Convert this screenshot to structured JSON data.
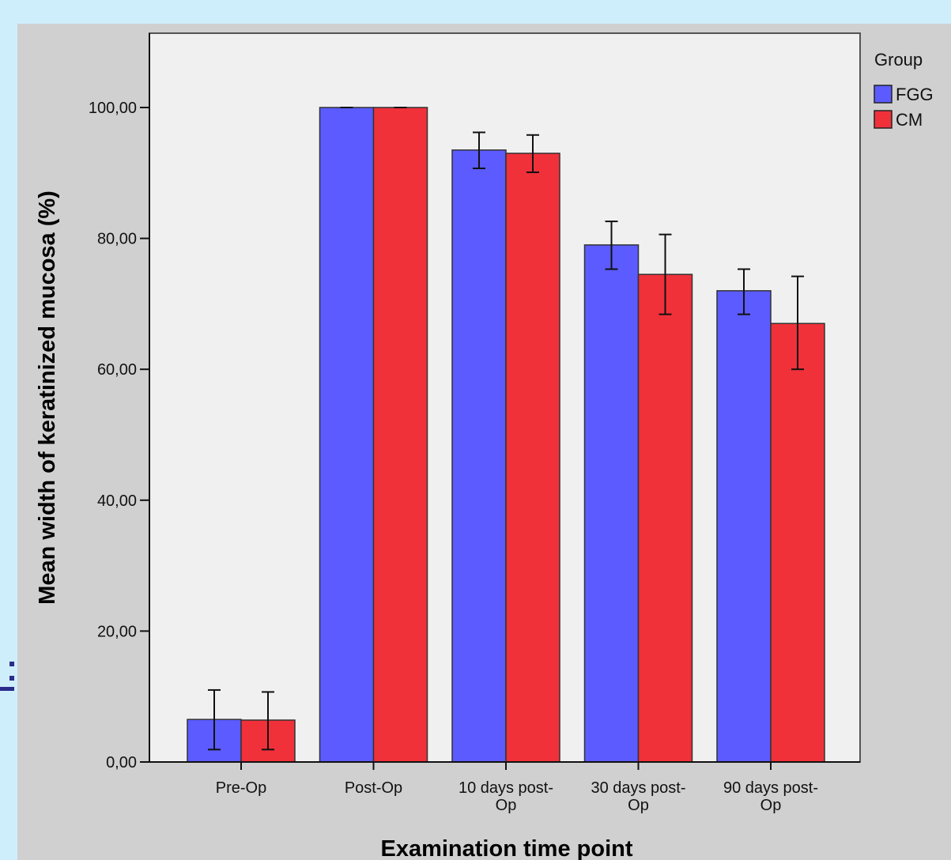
{
  "chart_data": {
    "type": "bar",
    "xlabel": "Examination time point",
    "ylabel": "Mean width of keratinized mucosa (%)",
    "categories": [
      [
        "Pre-Op"
      ],
      [
        "Post-Op"
      ],
      [
        "10 days post-",
        "Op"
      ],
      [
        "30 days post-",
        "Op"
      ],
      [
        "90 days post-",
        "Op"
      ]
    ],
    "ylim": [
      0,
      112
    ],
    "yticks": [
      0,
      20,
      40,
      60,
      80,
      100
    ],
    "ytick_labels": [
      "0,00",
      "20,00",
      "40,00",
      "60,00",
      "80,00",
      "100,00"
    ],
    "grid": false,
    "legend": {
      "title": "Group",
      "placement": "top-right"
    },
    "series": [
      {
        "name": "FGG",
        "color": "#5b5bff",
        "values": [
          6.5,
          100,
          93.5,
          79,
          72
        ],
        "error_low": [
          1.9,
          100,
          90.7,
          75.3,
          68.4
        ],
        "error_high": [
          11.0,
          100,
          96.2,
          82.6,
          75.3
        ]
      },
      {
        "name": "CM",
        "color": "#f0313a",
        "values": [
          6.4,
          100,
          93.0,
          74.5,
          67.0
        ],
        "error_low": [
          1.9,
          100,
          90.1,
          68.4,
          60.0
        ],
        "error_high": [
          10.7,
          100,
          95.8,
          80.6,
          74.2
        ]
      }
    ]
  }
}
